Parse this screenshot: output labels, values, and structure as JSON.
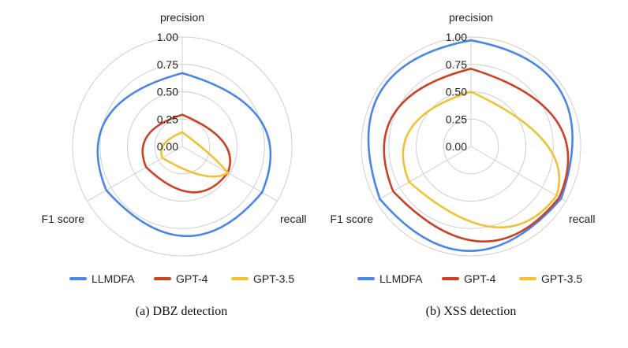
{
  "chart_data": [
    {
      "type": "radar",
      "axes": [
        "precision",
        "recall",
        "F1 score"
      ],
      "ticks": [
        "0.00",
        "0.25",
        "0.50",
        "0.75",
        "1.00"
      ],
      "range": [
        0,
        1
      ],
      "caption": "(a) DBZ detection",
      "legend_position": "bottom",
      "series": [
        {
          "name": "LLMDFA",
          "color": "#4a86e8",
          "values": [
            0.67,
            0.84,
            0.8
          ]
        },
        {
          "name": "GPT-4",
          "color": "#cc4125",
          "values": [
            0.29,
            0.48,
            0.38
          ]
        },
        {
          "name": "GPT-3.5",
          "color": "#f1c232",
          "values": [
            0.13,
            0.48,
            0.21
          ]
        }
      ]
    },
    {
      "type": "radar",
      "axes": [
        "precision",
        "recall",
        "F1 score"
      ],
      "ticks": [
        "0.00",
        "0.25",
        "0.50",
        "0.75",
        "1.00"
      ],
      "range": [
        0,
        1
      ],
      "caption": "(b) XSS detection",
      "legend_position": "bottom",
      "series": [
        {
          "name": "LLMDFA",
          "color": "#4a86e8",
          "values": [
            0.97,
            0.95,
            0.96
          ]
        },
        {
          "name": "GPT-4",
          "color": "#cc4125",
          "values": [
            0.71,
            0.93,
            0.82
          ]
        },
        {
          "name": "GPT-3.5",
          "color": "#f1c232",
          "values": [
            0.5,
            0.9,
            0.65
          ]
        }
      ]
    }
  ]
}
